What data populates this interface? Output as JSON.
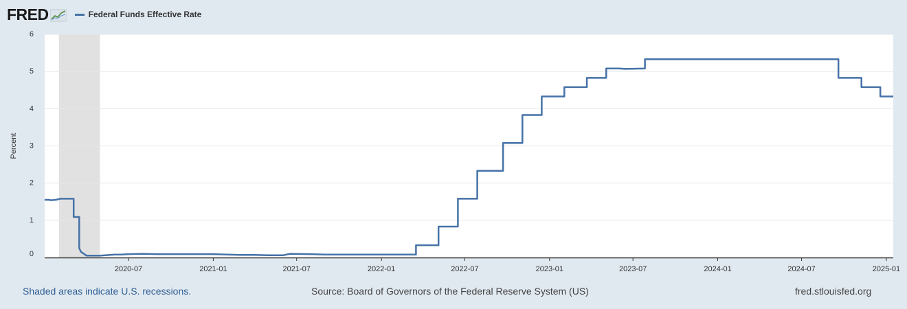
{
  "header": {
    "logo_text": "FRED",
    "legend_label": "Federal Funds Effective Rate"
  },
  "footer": {
    "recession_note": "Shaded areas indicate U.S. recessions.",
    "source": "Source: Board of Governors of the Federal Reserve System (US)",
    "site": "fred.stlouisfed.org"
  },
  "colors": {
    "series": "#4572a7",
    "background": "#e1e9f0",
    "plot_background": "#ffffff",
    "recession_shade": "#e1e1e1",
    "gridline": "#e6e6e6"
  },
  "chart_data": {
    "type": "line",
    "title": "",
    "xlabel": "",
    "ylabel": "Percent",
    "ylim": [
      0,
      6
    ],
    "yticks": [
      0,
      1,
      2,
      3,
      4,
      5,
      6
    ],
    "xlim": [
      "2020-01-01",
      "2025-01-16"
    ],
    "xticks": [
      "2020-07",
      "2021-01",
      "2021-07",
      "2022-01",
      "2022-07",
      "2023-01",
      "2023-07",
      "2024-01",
      "2024-07",
      "2025-01"
    ],
    "grid": true,
    "legend_position": "top-left",
    "recessions": [
      {
        "start": "2020-02-01",
        "end": "2020-04-30"
      }
    ],
    "series": [
      {
        "name": "Federal Funds Effective Rate",
        "points": [
          [
            "2020-01-01",
            1.55
          ],
          [
            "2020-01-10",
            1.55
          ],
          [
            "2020-01-15",
            1.54
          ],
          [
            "2020-01-25",
            1.55
          ],
          [
            "2020-02-05",
            1.58
          ],
          [
            "2020-02-15",
            1.58
          ],
          [
            "2020-02-25",
            1.58
          ],
          [
            "2020-03-04",
            1.58
          ],
          [
            "2020-03-04",
            1.09
          ],
          [
            "2020-03-16",
            1.09
          ],
          [
            "2020-03-16",
            0.25
          ],
          [
            "2020-03-20",
            0.15
          ],
          [
            "2020-04-01",
            0.05
          ],
          [
            "2020-04-15",
            0.05
          ],
          [
            "2020-05-01",
            0.05
          ],
          [
            "2020-06-01",
            0.08
          ],
          [
            "2020-06-15",
            0.08
          ],
          [
            "2020-07-01",
            0.09
          ],
          [
            "2020-08-01",
            0.1
          ],
          [
            "2020-09-01",
            0.09
          ],
          [
            "2020-10-01",
            0.09
          ],
          [
            "2020-11-01",
            0.09
          ],
          [
            "2020-12-01",
            0.09
          ],
          [
            "2021-01-01",
            0.09
          ],
          [
            "2021-02-01",
            0.08
          ],
          [
            "2021-03-01",
            0.07
          ],
          [
            "2021-04-01",
            0.07
          ],
          [
            "2021-05-01",
            0.06
          ],
          [
            "2021-06-01",
            0.06
          ],
          [
            "2021-06-17",
            0.1
          ],
          [
            "2021-08-01",
            0.09
          ],
          [
            "2021-09-01",
            0.08
          ],
          [
            "2021-10-01",
            0.08
          ],
          [
            "2021-11-01",
            0.08
          ],
          [
            "2021-12-01",
            0.08
          ],
          [
            "2022-01-01",
            0.08
          ],
          [
            "2022-02-01",
            0.08
          ],
          [
            "2022-03-17",
            0.08
          ],
          [
            "2022-03-17",
            0.33
          ],
          [
            "2022-05-05",
            0.33
          ],
          [
            "2022-05-05",
            0.83
          ],
          [
            "2022-06-16",
            0.83
          ],
          [
            "2022-06-16",
            1.58
          ],
          [
            "2022-07-28",
            1.58
          ],
          [
            "2022-07-28",
            2.33
          ],
          [
            "2022-09-22",
            2.33
          ],
          [
            "2022-09-22",
            3.08
          ],
          [
            "2022-11-03",
            3.08
          ],
          [
            "2022-11-03",
            3.83
          ],
          [
            "2022-12-15",
            3.83
          ],
          [
            "2022-12-15",
            4.33
          ],
          [
            "2023-02-02",
            4.33
          ],
          [
            "2023-02-02",
            4.58
          ],
          [
            "2023-03-23",
            4.58
          ],
          [
            "2023-03-23",
            4.83
          ],
          [
            "2023-05-04",
            4.83
          ],
          [
            "2023-05-04",
            5.08
          ],
          [
            "2023-06-01",
            5.08
          ],
          [
            "2023-06-15",
            5.07
          ],
          [
            "2023-07-27",
            5.08
          ],
          [
            "2023-07-27",
            5.33
          ],
          [
            "2024-01-01",
            5.33
          ],
          [
            "2024-06-01",
            5.33
          ],
          [
            "2024-09-19",
            5.33
          ],
          [
            "2024-09-19",
            4.83
          ],
          [
            "2024-11-08",
            4.83
          ],
          [
            "2024-11-08",
            4.58
          ],
          [
            "2024-12-19",
            4.58
          ],
          [
            "2024-12-19",
            4.33
          ],
          [
            "2025-01-16",
            4.33
          ]
        ]
      }
    ]
  }
}
